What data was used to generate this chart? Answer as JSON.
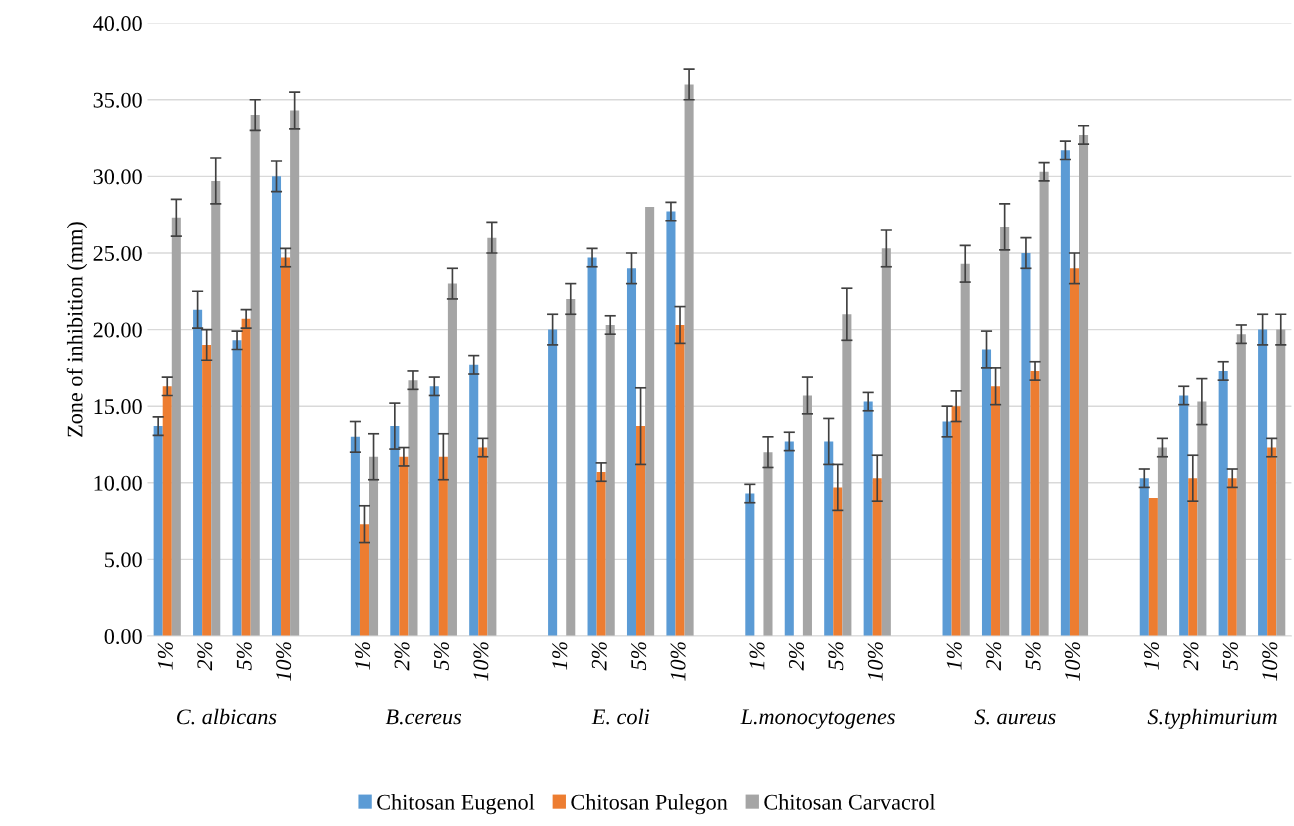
{
  "chart_data": {
    "type": "bar",
    "ylabel": "Zone of inhibition (mm)",
    "categories": [
      "1%",
      "2%",
      "5%",
      "10%",
      null,
      "1%",
      "2%",
      "5%",
      "10%",
      null,
      "1%",
      "2%",
      "5%",
      "10%",
      null,
      "1%",
      "2%",
      "5%",
      "10%",
      null,
      "1%",
      "2%",
      "5%",
      "10%",
      null,
      "1%",
      "2%",
      "5%",
      "10%"
    ],
    "annotations": [
      "C. albicans",
      "B.cereus",
      "E. coli",
      "L.monocytogenes",
      "S. aureus",
      "S.typhimurium"
    ],
    "series": [
      {
        "name": "Chitosan Eugenol",
        "color": "#5b9bd5",
        "values": [
          13.7,
          21.3,
          19.3,
          30.0,
          null,
          13.0,
          13.7,
          16.3,
          17.7,
          null,
          20.0,
          24.7,
          24.0,
          27.7,
          null,
          9.3,
          12.7,
          12.7,
          15.3,
          null,
          14.0,
          18.7,
          25.0,
          31.7,
          null,
          10.3,
          15.7,
          17.3,
          20.0
        ],
        "errors": [
          0.6,
          1.2,
          0.6,
          1.0,
          null,
          1.0,
          1.5,
          0.6,
          0.6,
          null,
          1.0,
          0.6,
          1.0,
          0.6,
          null,
          0.6,
          0.6,
          1.5,
          0.6,
          null,
          1.0,
          1.2,
          1.0,
          0.6,
          null,
          0.6,
          0.6,
          0.6,
          1.0
        ]
      },
      {
        "name": "Chitosan Pulegon",
        "color": "#ed7d31",
        "values": [
          16.3,
          19.0,
          20.7,
          24.7,
          null,
          7.3,
          11.7,
          11.7,
          12.3,
          null,
          null,
          10.7,
          13.7,
          20.3,
          null,
          null,
          null,
          9.7,
          10.3,
          null,
          15.0,
          16.3,
          17.3,
          24.0,
          null,
          9.0,
          10.3,
          10.3,
          12.3
        ],
        "errors": [
          0.6,
          1.0,
          0.6,
          0.6,
          null,
          1.2,
          0.6,
          1.5,
          0.6,
          null,
          null,
          0.6,
          2.5,
          1.2,
          null,
          null,
          null,
          1.5,
          1.5,
          null,
          1.0,
          1.2,
          0.6,
          1.0,
          null,
          null,
          1.5,
          0.6,
          0.6
        ]
      },
      {
        "name": "Chitosan Carvacrol",
        "color": "#a5a5a5",
        "values": [
          27.3,
          29.7,
          34.0,
          34.3,
          null,
          11.7,
          16.7,
          23.0,
          26.0,
          null,
          22.0,
          20.3,
          28.0,
          36.0,
          null,
          12.0,
          15.7,
          21.0,
          25.3,
          null,
          24.3,
          26.7,
          30.3,
          32.7,
          null,
          12.3,
          15.3,
          19.7,
          20.0
        ],
        "errors": [
          1.2,
          1.5,
          1.0,
          1.2,
          null,
          1.5,
          0.6,
          1.0,
          1.0,
          null,
          1.0,
          0.6,
          null,
          1.0,
          null,
          1.0,
          1.2,
          1.7,
          1.2,
          null,
          1.2,
          1.5,
          0.6,
          0.6,
          null,
          0.6,
          1.5,
          0.6,
          1.0
        ]
      }
    ],
    "ylim": [
      0,
      40
    ],
    "yticks": [
      {
        "value": 0,
        "label": "0.00"
      },
      {
        "value": 5,
        "label": "5.00"
      },
      {
        "value": 10,
        "label": "10.00"
      },
      {
        "value": 15,
        "label": "15.00"
      },
      {
        "value": 20,
        "label": "20.00"
      },
      {
        "value": 25,
        "label": "25.00"
      },
      {
        "value": 30,
        "label": "30.00"
      },
      {
        "value": 35,
        "label": "35.00"
      },
      {
        "value": 40,
        "label": "40.00"
      }
    ],
    "grid": "y",
    "legend": "bottom"
  }
}
